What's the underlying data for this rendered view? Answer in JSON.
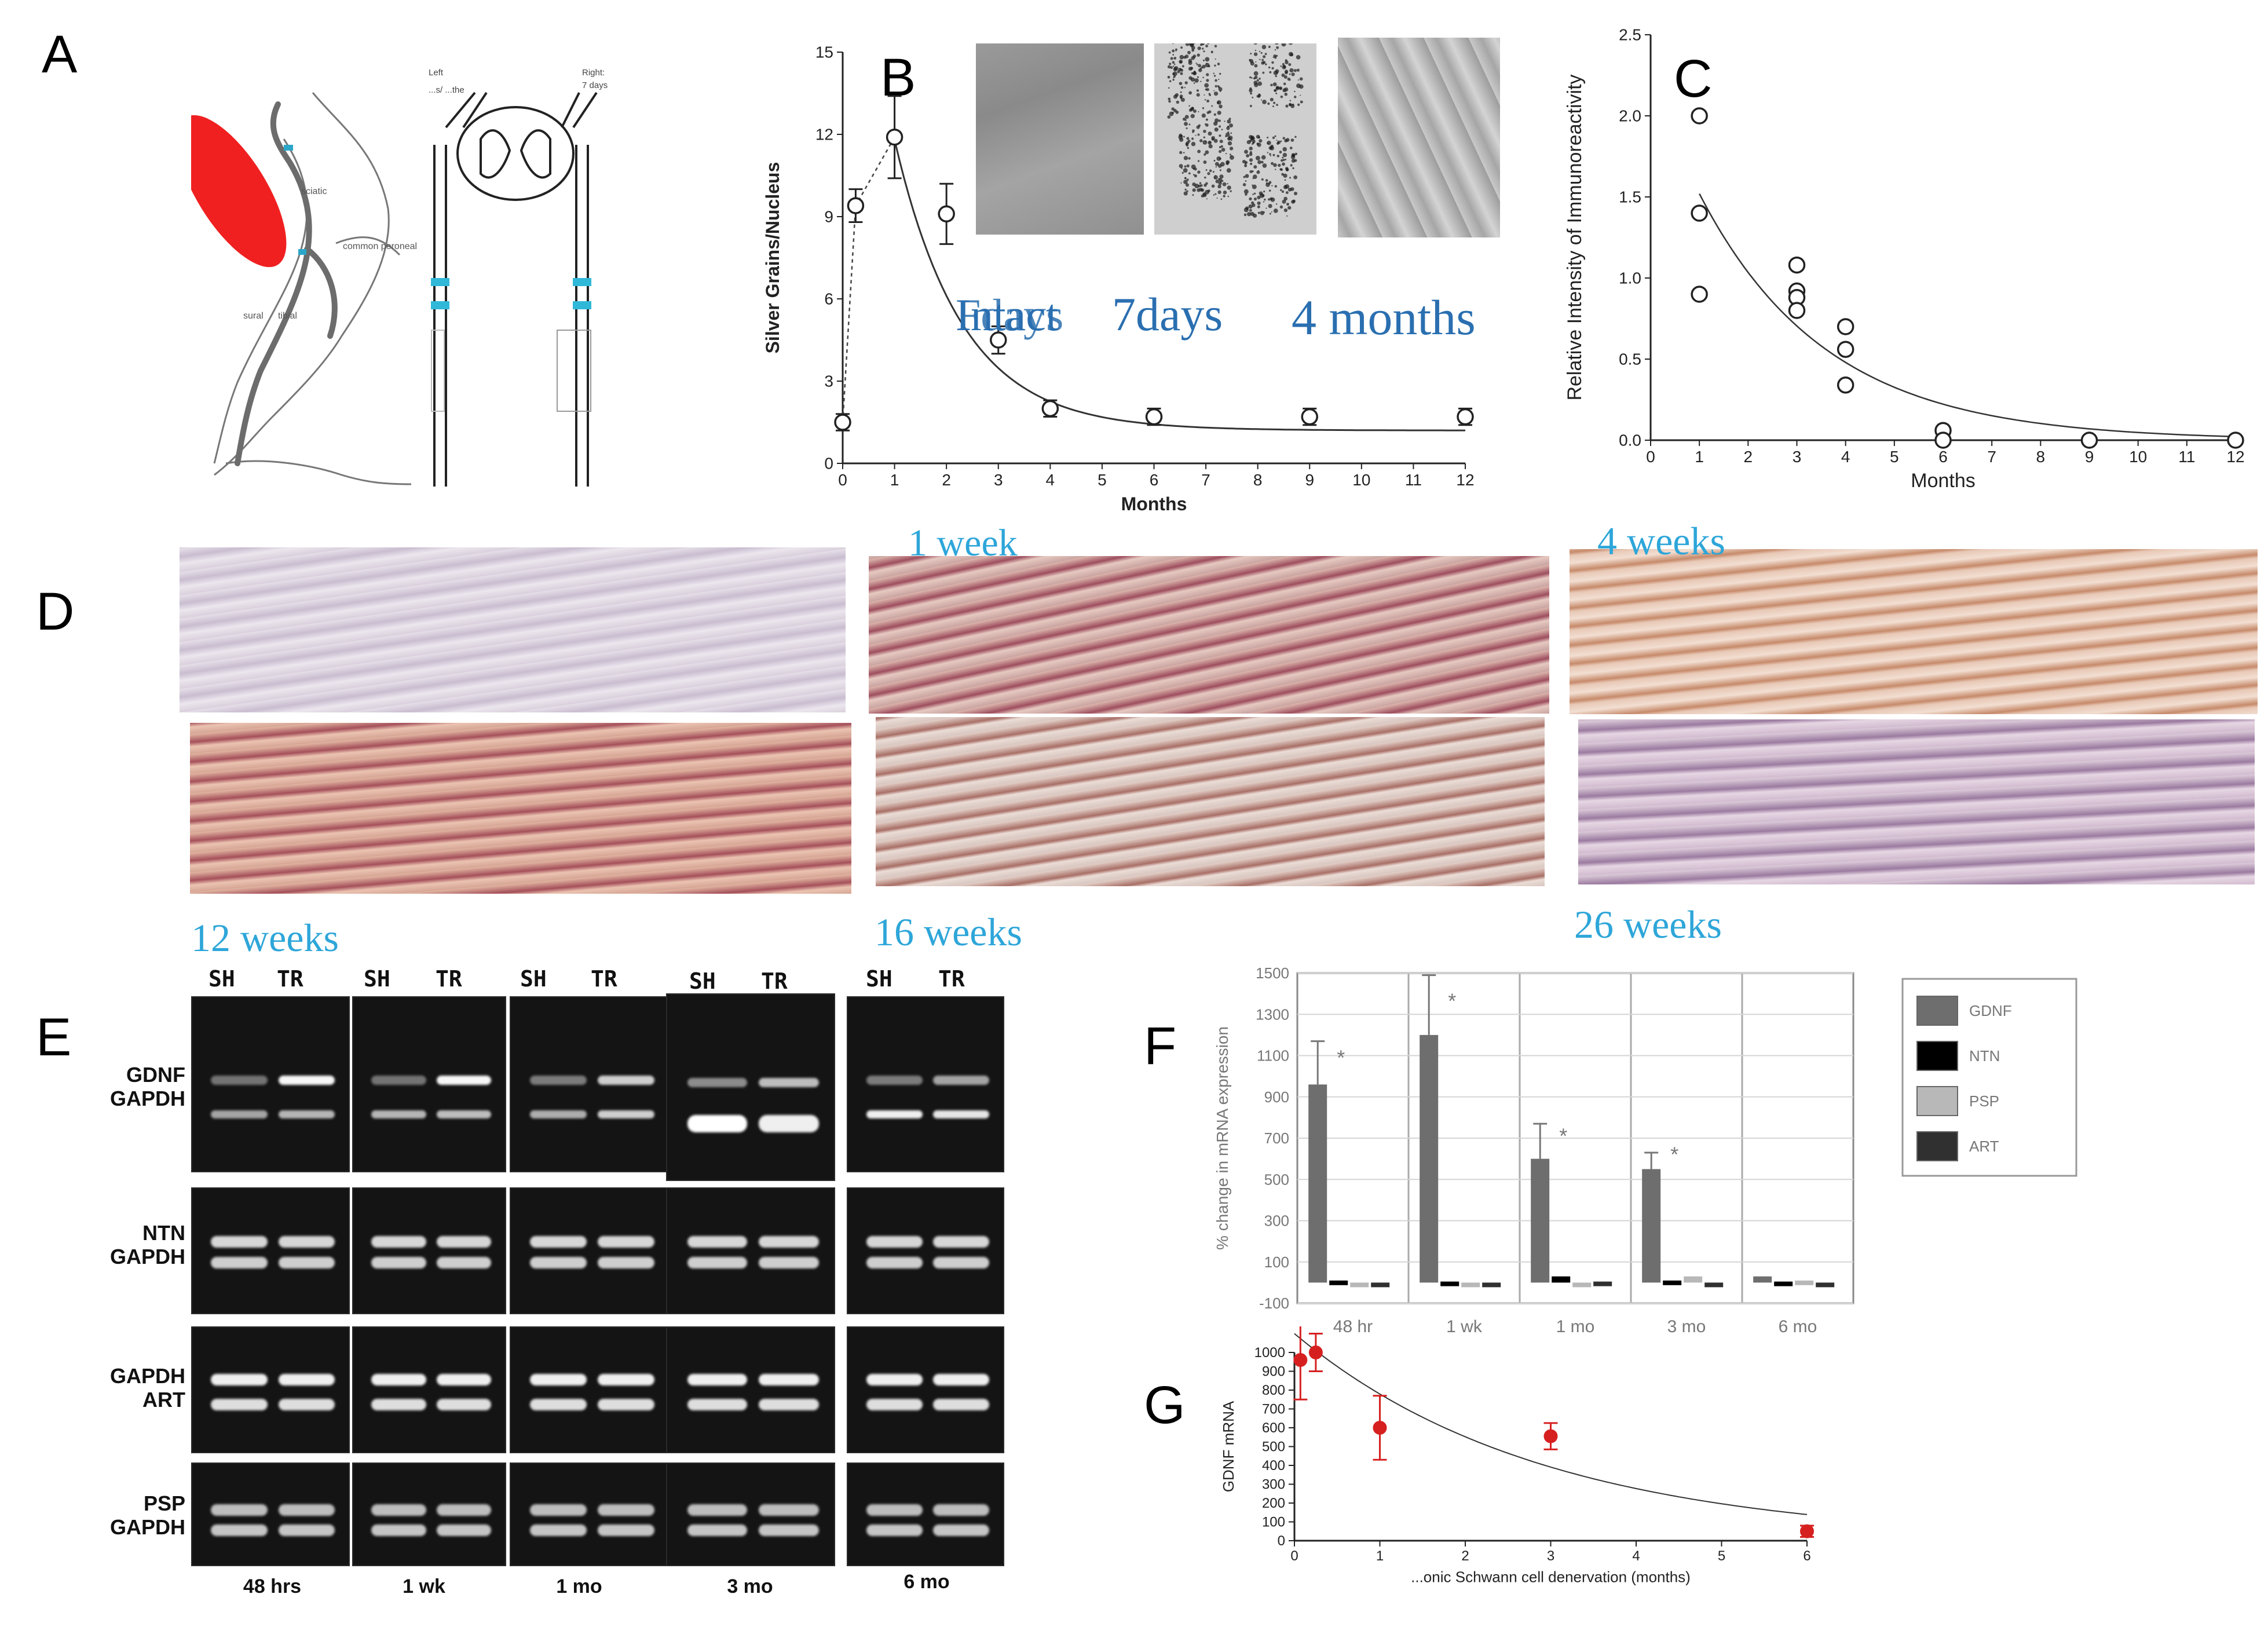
{
  "panels": {
    "A": {
      "letter": "A",
      "labels": {
        "sciatic": "sciatic",
        "common_peroneal": "common peroneal",
        "sural": "sural",
        "tibial": "tibial",
        "left": "Left",
        "left_sub": "...s/ ...the",
        "right": "Right:",
        "right_sub": "7 days"
      }
    },
    "B": {
      "letter": "B",
      "micro_labels": [
        "Intact",
        "7days",
        "4 months"
      ],
      "overlap_label": "Fdays"
    },
    "C": {
      "letter": "C"
    },
    "D": {
      "letter": "D",
      "time_labels": [
        "1 week",
        "4 weeks",
        "12 weeks",
        "16 weeks",
        "26  weeks"
      ]
    },
    "E": {
      "letter": "E",
      "lane_heads": [
        "SH",
        "TR"
      ],
      "row_labels": [
        [
          "GDNF",
          "GAPDH"
        ],
        [
          "NTN",
          "GAPDH"
        ],
        [
          "GAPDH",
          "ART"
        ],
        [
          "PSP",
          "GAPDH"
        ]
      ],
      "time_points": [
        "48 hrs",
        "1 wk",
        "1 mo",
        "3 mo",
        "6 mo"
      ]
    },
    "F": {
      "letter": "F"
    },
    "G": {
      "letter": "G"
    }
  },
  "chart_data": [
    {
      "id": "B",
      "type": "scatter",
      "xlabel": "Months",
      "ylabel": "Silver Grains/Nucleus",
      "xlim": [
        0,
        12
      ],
      "ylim": [
        0,
        15
      ],
      "xticks": [
        0,
        1,
        2,
        3,
        4,
        5,
        6,
        7,
        8,
        9,
        10,
        11,
        12
      ],
      "yticks": [
        0,
        3,
        6,
        9,
        12,
        15
      ],
      "points": [
        {
          "x": 0,
          "y": 1.5,
          "err": 0.3
        },
        {
          "x": 0.25,
          "y": 9.4,
          "err": 0.6
        },
        {
          "x": 1,
          "y": 11.9,
          "err": 1.5
        },
        {
          "x": 2,
          "y": 9.1,
          "err": 1.1
        },
        {
          "x": 3,
          "y": 4.5,
          "err": 0.5
        },
        {
          "x": 4,
          "y": 2.0,
          "err": 0.3
        },
        {
          "x": 6,
          "y": 1.7,
          "err": 0.3
        },
        {
          "x": 9,
          "y": 1.7,
          "err": 0.3
        },
        {
          "x": 12,
          "y": 1.7,
          "err": 0.3
        }
      ],
      "fit": "exponential decay from month 1",
      "grid": false
    },
    {
      "id": "C",
      "type": "scatter",
      "xlabel": "Months",
      "ylabel": "Relative Intensity of Immunoreactivity",
      "xlim": [
        0,
        12
      ],
      "ylim": [
        0,
        2.5
      ],
      "xticks": [
        0,
        1,
        2,
        3,
        4,
        5,
        6,
        7,
        8,
        9,
        10,
        11,
        12
      ],
      "yticks": [
        "0.0",
        "0.5",
        "1.0",
        "1.5",
        "2.0",
        "2.5"
      ],
      "points": [
        {
          "x": 1,
          "y": 2.0
        },
        {
          "x": 1,
          "y": 1.4
        },
        {
          "x": 1,
          "y": 0.9
        },
        {
          "x": 3,
          "y": 1.08
        },
        {
          "x": 3,
          "y": 0.92
        },
        {
          "x": 3,
          "y": 0.88
        },
        {
          "x": 3,
          "y": 0.8
        },
        {
          "x": 4,
          "y": 0.7
        },
        {
          "x": 4,
          "y": 0.56
        },
        {
          "x": 4,
          "y": 0.34
        },
        {
          "x": 6,
          "y": 0.06
        },
        {
          "x": 6,
          "y": 0.0
        },
        {
          "x": 9,
          "y": 0.0
        },
        {
          "x": 12,
          "y": 0.0
        }
      ],
      "fit": "exponential decay",
      "grid": false
    },
    {
      "id": "F",
      "type": "bar",
      "ylabel": "% change in mRNA expression",
      "ylim": [
        -100,
        1500
      ],
      "yticks": [
        -100,
        100,
        300,
        500,
        700,
        900,
        1100,
        1300,
        1500
      ],
      "categories": [
        "48 hr",
        "1 wk",
        "1 mo",
        "3 mo",
        "6 mo"
      ],
      "series": [
        {
          "name": "GDNF",
          "color": "#6e6e6e",
          "values": [
            960,
            1200,
            600,
            550,
            30
          ],
          "errors": [
            210,
            290,
            170,
            80,
            0
          ]
        },
        {
          "name": "NTN",
          "color": "#000000",
          "values": [
            10,
            5,
            30,
            10,
            5
          ]
        },
        {
          "name": "PSP",
          "color": "#b8b8b8",
          "values": [
            0,
            -20,
            0,
            30,
            10
          ]
        },
        {
          "name": "ART",
          "color": "#303030",
          "values": [
            -20,
            0,
            5,
            -20,
            -20
          ]
        }
      ],
      "annotations": [
        "*",
        "*",
        "*",
        "*"
      ],
      "legend": "right",
      "grid": true
    },
    {
      "id": "G",
      "type": "scatter",
      "ylabel": "GDNF mRNA",
      "xlabel": "...onic Schwann cell denervation (months)",
      "xlim": [
        0,
        6
      ],
      "ylim": [
        0,
        1000
      ],
      "xticks": [
        0,
        1,
        2,
        3,
        4,
        5,
        6
      ],
      "yticks": [
        0,
        100,
        200,
        300,
        400,
        500,
        600,
        700,
        800,
        900,
        1000
      ],
      "points": [
        {
          "x": 0.07,
          "y": 960,
          "err": 210
        },
        {
          "x": 0.25,
          "y": 1000,
          "err": 100
        },
        {
          "x": 1,
          "y": 600,
          "err": 170
        },
        {
          "x": 3,
          "y": 555,
          "err": 70
        },
        {
          "x": 6,
          "y": 50,
          "err": 30
        }
      ],
      "point_color": "#d62020",
      "fit": "exponential decay"
    }
  ]
}
